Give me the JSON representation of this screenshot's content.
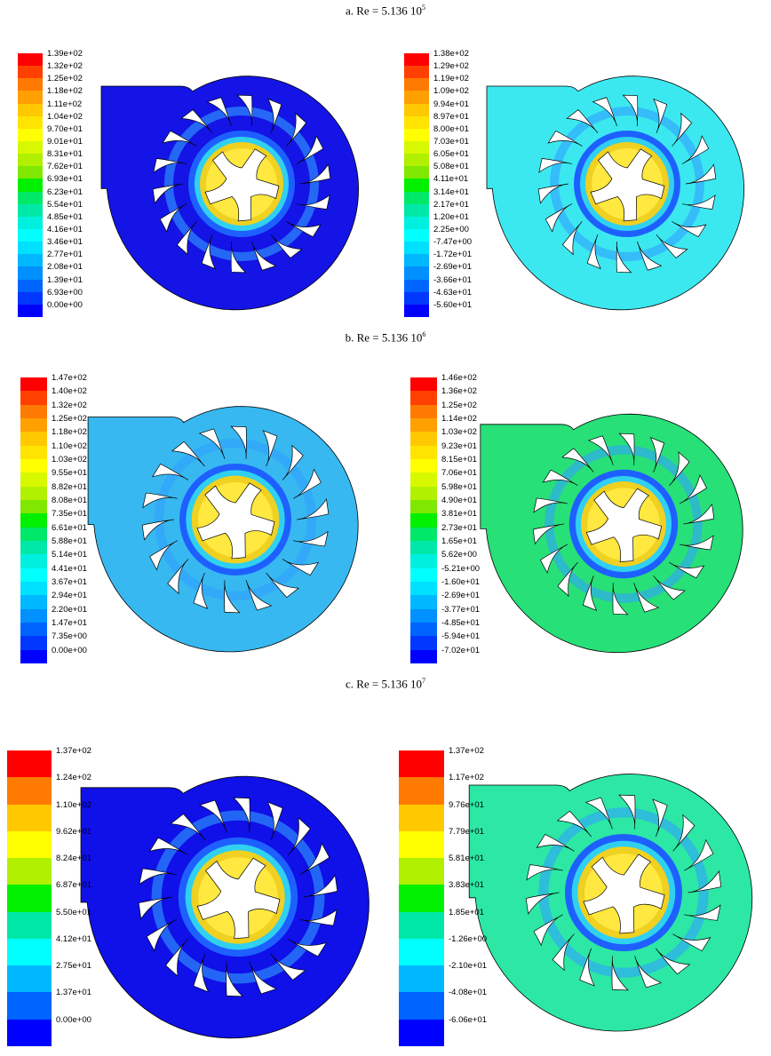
{
  "figure": {
    "captions": [
      {
        "text": "a. Re = 5.136 10",
        "exp": "5"
      },
      {
        "text": "b. Re = 5.136 10",
        "exp": "6"
      },
      {
        "text": "c. Re = 5.136 10",
        "exp": "7"
      }
    ],
    "panels": [
      {
        "row": "a",
        "side": "left",
        "base_color": "#1414e6",
        "legend": [
          "1.39e+02",
          "1.32e+02",
          "1.25e+02",
          "1.18e+02",
          "1.11e+02",
          "1.04e+02",
          "9.70e+01",
          "9.01e+01",
          "8.31e+01",
          "7.62e+01",
          "6.93e+01",
          "6.23e+01",
          "5.54e+01",
          "4.85e+01",
          "4.16e+01",
          "3.46e+01",
          "2.77e+01",
          "2.08e+01",
          "1.39e+01",
          "6.93e+00",
          "0.00e+00"
        ]
      },
      {
        "row": "a",
        "side": "right",
        "base_color": "#3ce8f0",
        "legend": [
          "1.38e+02",
          "1.29e+02",
          "1.19e+02",
          "1.09e+02",
          "9.94e+01",
          "8.97e+01",
          "8.00e+01",
          "7.03e+01",
          "6.05e+01",
          "5.08e+01",
          "4.11e+01",
          "3.14e+01",
          "2.17e+01",
          "1.20e+01",
          "2.25e+00",
          "-7.47e+00",
          "-1.72e+01",
          "-2.69e+01",
          "-3.66e+01",
          "-4.63e+01",
          "-5.60e+01"
        ]
      },
      {
        "row": "b",
        "side": "left",
        "base_color": "#38b8f0",
        "legend": [
          "1.47e+02",
          "1.40e+02",
          "1.32e+02",
          "1.25e+02",
          "1.18e+02",
          "1.10e+02",
          "1.03e+02",
          "9.55e+01",
          "8.82e+01",
          "8.08e+01",
          "7.35e+01",
          "6.61e+01",
          "5.88e+01",
          "5.14e+01",
          "4.41e+01",
          "3.67e+01",
          "2.94e+01",
          "2.20e+01",
          "1.47e+01",
          "7.35e+00",
          "0.00e+00"
        ]
      },
      {
        "row": "b",
        "side": "right",
        "base_color": "#28e078",
        "legend": [
          "1.46e+02",
          "1.36e+02",
          "1.25e+02",
          "1.14e+02",
          "1.03e+02",
          "9.23e+01",
          "8.15e+01",
          "7.06e+01",
          "5.98e+01",
          "4.90e+01",
          "3.81e+01",
          "2.73e+01",
          "1.65e+01",
          "5.62e+00",
          "-5.21e+00",
          "-1.60e+01",
          "-2.69e+01",
          "-3.77e+01",
          "-4.85e+01",
          "-5.94e+01",
          "-7.02e+01"
        ]
      },
      {
        "row": "c",
        "side": "left",
        "base_color": "#1010e8",
        "legend": [
          "1.37e+02",
          "1.24e+02",
          "1.10e+02",
          "9.62e+01",
          "8.24e+01",
          "6.87e+01",
          "5.50e+01",
          "4.12e+01",
          "2.75e+01",
          "1.37e+01",
          "0.00e+00"
        ]
      },
      {
        "row": "c",
        "side": "right",
        "base_color": "#2ce8a4",
        "legend": [
          "1.37e+02",
          "1.17e+02",
          "9.76e+01",
          "7.79e+01",
          "5.81e+01",
          "3.83e+01",
          "1.85e+01",
          "-1.26e+00",
          "-2.10e+01",
          "-4.08e+01",
          "-6.06e+01"
        ]
      }
    ],
    "colormap": [
      "#ff0000",
      "#ff4000",
      "#ff7a00",
      "#ffa000",
      "#ffc800",
      "#ffe400",
      "#ffff00",
      "#d8f800",
      "#b0f000",
      "#80e800",
      "#00f000",
      "#00e868",
      "#00e8a8",
      "#00f0e0",
      "#00ffff",
      "#00e0ff",
      "#00b8ff",
      "#0090ff",
      "#0064ff",
      "#0038ff",
      "#0000ff"
    ]
  }
}
